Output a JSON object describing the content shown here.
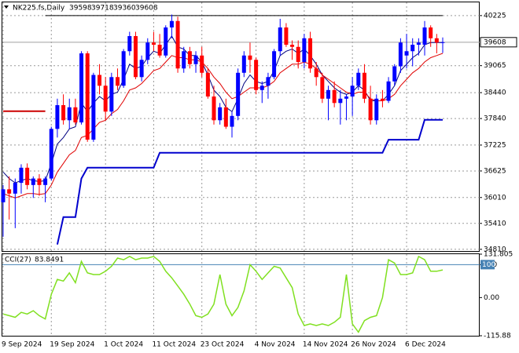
{
  "chart_data": [
    {
      "type": "candlestick",
      "title": "NK225.fs,Daily",
      "categories": [
        "9 Sep 2024",
        null,
        null,
        null,
        null,
        null,
        null,
        null,
        "19 Sep 2024",
        null,
        null,
        null,
        null,
        null,
        null,
        null,
        null,
        "1 Oct 2024",
        null,
        null,
        null,
        null,
        null,
        null,
        null,
        "11 Oct 2024",
        null,
        null,
        null,
        null,
        null,
        null,
        null,
        "23 Oct 2024",
        null,
        null,
        null,
        null,
        null,
        null,
        null,
        null,
        "4 Nov 2024",
        null,
        null,
        null,
        null,
        null,
        null,
        null,
        "14 Nov 2024",
        null,
        null,
        null,
        null,
        null,
        null,
        null,
        "26 Nov 2024",
        null,
        null,
        null,
        null,
        null,
        null,
        null,
        null,
        "6 Dec 2024",
        null,
        null,
        null,
        null,
        null,
        null
      ],
      "up_color": "#0000ff",
      "down_color": "#ff0000",
      "candles": [
        [
          35900,
          36300,
          35100,
          36200
        ],
        [
          36200,
          36500,
          35500,
          36100
        ],
        [
          36100,
          36450,
          35300,
          36350
        ],
        [
          36350,
          36780,
          36100,
          36700
        ],
        [
          36700,
          36800,
          36200,
          36300
        ],
        [
          36300,
          36500,
          36000,
          36450
        ],
        [
          36450,
          36550,
          36050,
          36300
        ],
        [
          36300,
          36500,
          35900,
          36450
        ],
        [
          36450,
          37650,
          36400,
          37600
        ],
        [
          37600,
          38300,
          37400,
          38150
        ],
        [
          38150,
          38400,
          37700,
          37800
        ],
        [
          37800,
          38300,
          37600,
          38100
        ],
        [
          38100,
          38300,
          37700,
          37750
        ],
        [
          37750,
          39400,
          37700,
          39350
        ],
        [
          39350,
          39400,
          37300,
          37350
        ],
        [
          37350,
          38900,
          37300,
          38850
        ],
        [
          38850,
          39100,
          38400,
          38600
        ],
        [
          38600,
          38800,
          37800,
          38000
        ],
        [
          38000,
          38900,
          37900,
          38800
        ],
        [
          38800,
          39000,
          38500,
          38600
        ],
        [
          38600,
          39450,
          38550,
          39400
        ],
        [
          39400,
          39850,
          39300,
          39750
        ],
        [
          39750,
          39850,
          38750,
          38800
        ],
        [
          38800,
          39300,
          38700,
          39200
        ],
        [
          39200,
          39700,
          39100,
          39600
        ],
        [
          39600,
          39850,
          39400,
          39550
        ],
        [
          39550,
          39800,
          39250,
          39300
        ],
        [
          39300,
          40000,
          39250,
          39950
        ],
        [
          39950,
          40250,
          39700,
          40100
        ],
        [
          40100,
          40200,
          38900,
          39000
        ],
        [
          39000,
          39500,
          38900,
          39400
        ],
        [
          39400,
          39500,
          39000,
          39100
        ],
        [
          39100,
          39400,
          38900,
          39300
        ],
        [
          39300,
          39500,
          38800,
          38900
        ],
        [
          38900,
          39000,
          38300,
          38350
        ],
        [
          38350,
          38600,
          37700,
          37800
        ],
        [
          37800,
          38200,
          37700,
          38100
        ],
        [
          38100,
          38300,
          37600,
          37650
        ],
        [
          37650,
          38000,
          37400,
          37900
        ],
        [
          37900,
          39000,
          37800,
          38900
        ],
        [
          38900,
          39400,
          38800,
          39300
        ],
        [
          39300,
          39600,
          38900,
          39200
        ],
        [
          39200,
          39250,
          38400,
          38500
        ],
        [
          38500,
          38700,
          38200,
          38600
        ],
        [
          38600,
          38900,
          38300,
          38800
        ],
        [
          38800,
          39450,
          38750,
          39400
        ],
        [
          39400,
          40150,
          39300,
          39950
        ],
        [
          39950,
          40050,
          39500,
          39550
        ],
        [
          39550,
          39650,
          39200,
          39500
        ],
        [
          39500,
          39650,
          39000,
          39150
        ],
        [
          39150,
          39800,
          39000,
          39700
        ],
        [
          39700,
          39850,
          38900,
          39000
        ],
        [
          39000,
          39150,
          38600,
          38800
        ],
        [
          38800,
          38900,
          38200,
          38300
        ],
        [
          38300,
          38600,
          37800,
          38500
        ],
        [
          38500,
          38700,
          38100,
          38200
        ],
        [
          38200,
          38500,
          37700,
          38300
        ],
        [
          38300,
          38400,
          37800,
          38350
        ],
        [
          38350,
          38800,
          37900,
          38600
        ],
        [
          38600,
          39000,
          38500,
          38900
        ],
        [
          38900,
          39100,
          38200,
          38300
        ],
        [
          38300,
          38600,
          37700,
          37800
        ],
        [
          37800,
          38400,
          37700,
          38300
        ],
        [
          38300,
          38500,
          38100,
          38250
        ],
        [
          38250,
          38800,
          38200,
          38700
        ],
        [
          38700,
          39100,
          38600,
          39050
        ],
        [
          39050,
          39700,
          38900,
          39600
        ],
        [
          39300,
          39800,
          39000,
          39400
        ],
        [
          39400,
          39700,
          39050,
          39550
        ],
        [
          39550,
          39700,
          39300,
          39600
        ],
        [
          39550,
          40100,
          39300,
          39950
        ],
        [
          39950,
          40000,
          39500,
          39700
        ],
        [
          39700,
          39800,
          39350,
          39600
        ],
        [
          39598,
          39718,
          39360,
          39608
        ]
      ],
      "series": [
        {
          "color": "#000080",
          "width": 1,
          "values": [
            36600,
            36450,
            36350,
            36400,
            36450,
            36400,
            36380,
            36400,
            36800,
            37250,
            37400,
            37600,
            37650,
            38200,
            38000,
            38200,
            38350,
            38250,
            38400,
            38450,
            38750,
            39100,
            39000,
            39050,
            39250,
            39400,
            39350,
            39550,
            39750,
            39500,
            39450,
            39300,
            39300,
            39150,
            38850,
            38500,
            38350,
            38100,
            38000,
            38300,
            38650,
            38850,
            38700,
            38650,
            38700,
            38950,
            39300,
            39400,
            39450,
            39350,
            39450,
            39300,
            39100,
            38850,
            38700,
            38550,
            38450,
            38400,
            38450,
            38600,
            38500,
            38250,
            38250,
            38250,
            38400,
            38600,
            38950,
            39100,
            39250,
            39350,
            39550,
            39600,
            39600,
            39600
          ]
        },
        {
          "color": "#e00000",
          "width": 1,
          "values": [
            36100,
            36050,
            36000,
            36050,
            36100,
            36100,
            36080,
            36100,
            36300,
            36600,
            36800,
            37000,
            37100,
            37400,
            37450,
            37600,
            37750,
            37800,
            37950,
            38050,
            38250,
            38500,
            38550,
            38650,
            38800,
            38950,
            39000,
            39150,
            39300,
            39250,
            39250,
            39200,
            39200,
            39150,
            39000,
            38800,
            38650,
            38450,
            38300,
            38350,
            38450,
            38550,
            38550,
            38550,
            38600,
            38700,
            38900,
            39000,
            39100,
            39100,
            39150,
            39100,
            39000,
            38850,
            38750,
            38650,
            38550,
            38450,
            38400,
            38450,
            38450,
            38300,
            38250,
            38250,
            38300,
            38400,
            38600,
            38750,
            38900,
            39000,
            39150,
            39250,
            39300,
            39350
          ]
        },
        {
          "color": "#0000cd",
          "width": 2,
          "values": [
            null,
            null,
            null,
            null,
            null,
            null,
            null,
            null,
            null,
            34920,
            35555,
            35555,
            35555,
            36450,
            36700,
            36700,
            36700,
            36700,
            36700,
            36700,
            36700,
            36700,
            36700,
            36700,
            36700,
            36700,
            37045,
            37045,
            37045,
            37045,
            37045,
            37045,
            37045,
            37045,
            37045,
            37045,
            37045,
            37045,
            37045,
            37045,
            37045,
            37045,
            37045,
            37045,
            37045,
            37045,
            37045,
            37045,
            37045,
            37045,
            37045,
            37045,
            37045,
            37045,
            37045,
            37045,
            37045,
            37045,
            37045,
            37045,
            37045,
            37045,
            37045,
            37045,
            37350,
            37350,
            37350,
            37350,
            37350,
            37350,
            37810,
            37810,
            37810,
            37810
          ]
        },
        {
          "color": "#cc0000",
          "width": 2,
          "values": [
            38010,
            38010,
            38010,
            38010,
            38010,
            38010,
            38010,
            38010,
            null,
            null,
            null,
            null,
            null,
            null,
            null,
            null,
            null,
            null,
            null,
            null,
            null,
            null,
            null,
            null,
            null,
            null,
            null,
            null,
            null,
            null,
            null,
            null,
            null,
            null,
            null,
            null,
            null,
            null,
            null,
            null,
            null,
            null,
            null,
            null,
            null,
            null,
            null,
            null,
            null,
            null,
            null,
            null,
            null,
            null,
            null,
            null,
            null,
            null,
            null,
            null,
            null,
            null,
            null,
            null,
            null,
            null,
            null,
            null,
            null,
            null,
            null,
            null,
            null,
            null
          ]
        },
        {
          "color": "#000000",
          "width": 1,
          "values": [
            null,
            null,
            null,
            null,
            null,
            null,
            null,
            40225,
            40225,
            40225,
            40225,
            40225,
            40225,
            40225,
            40225,
            40225,
            40225,
            40225,
            40225,
            40225,
            40225,
            40225,
            40225,
            40225,
            40225,
            40225,
            40225,
            40225,
            40225,
            40225,
            40225,
            40225,
            40225,
            40225,
            40225,
            40225,
            40225,
            40225,
            40225,
            40225,
            40225,
            40225,
            40225,
            40225,
            40225,
            40225,
            40225,
            40225,
            40225,
            40225,
            40225,
            40225,
            40225,
            40225,
            40225,
            40225,
            40225,
            40225,
            40225,
            40225,
            40225,
            40225,
            40225,
            40225,
            40225,
            40225,
            40225,
            40225,
            40225,
            40225,
            40225,
            40225,
            40225,
            40225
          ]
        }
      ],
      "ylim": [
        34770,
        40550
      ],
      "yticks": [
        40225,
        39065,
        38440,
        37840,
        37225,
        36625,
        36010,
        35410,
        34810
      ],
      "grid": true
    },
    {
      "type": "line",
      "title": "CCI(27)",
      "color": "#80e020",
      "values": [
        -50,
        -55,
        -60,
        -45,
        -50,
        -40,
        -55,
        -65,
        10,
        55,
        50,
        75,
        45,
        110,
        75,
        70,
        70,
        80,
        95,
        120,
        115,
        125,
        115,
        120,
        120,
        125,
        110,
        80,
        60,
        35,
        10,
        -20,
        -55,
        -60,
        -50,
        -20,
        70,
        -20,
        -55,
        -30,
        20,
        100,
        80,
        55,
        75,
        95,
        90,
        60,
        30,
        -50,
        -85,
        -80,
        -85,
        -80,
        -85,
        -75,
        -60,
        70,
        -80,
        -105,
        -70,
        -60,
        -55,
        0,
        115,
        105,
        70,
        70,
        75,
        125,
        115,
        80,
        80,
        83.8491
      ],
      "ylim": [
        -115.88,
        131.805
      ],
      "yticks": [
        131.805,
        100,
        {
          "value": 0,
          "label": "0.00"
        },
        -115.88
      ],
      "level_color": "#4682b4"
    }
  ]
}
